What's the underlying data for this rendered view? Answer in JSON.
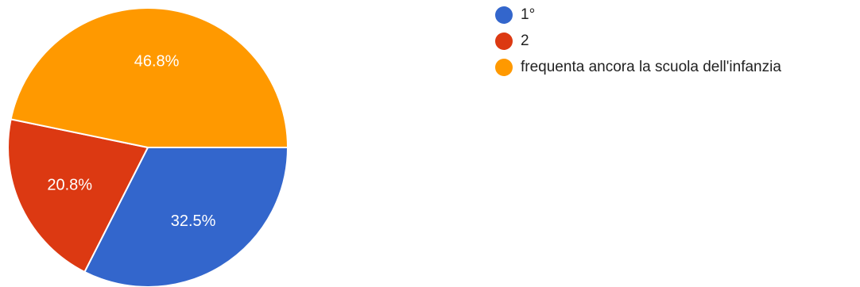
{
  "chart_data": {
    "type": "pie",
    "slices": [
      {
        "label": "1°",
        "value": 32.5,
        "display": "32.5%",
        "color": "#3366cc"
      },
      {
        "label": "2",
        "value": 20.8,
        "display": "20.8%",
        "color": "#dc3912"
      },
      {
        "label": "frequenta ancora la scuola dell'infanzia",
        "value": 46.8,
        "display": "46.8%",
        "color": "#ff9900"
      }
    ],
    "start_angle_deg": 0,
    "direction": "clockwise",
    "legend_position": "top-right"
  }
}
